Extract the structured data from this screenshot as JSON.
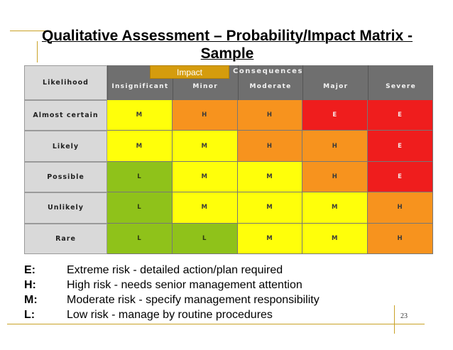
{
  "slide": {
    "title_line1": "Qualitative Assessment – Probability/Impact Matrix -",
    "title_line2": "Sample",
    "page_number": "23"
  },
  "matrix": {
    "impact_label": "Impact",
    "consequences_label": "Consequences",
    "likelihood_label": "Likelihood",
    "columns": [
      "Insignificant",
      "Minor",
      "Moderate",
      "Major",
      "Severe"
    ],
    "rows": [
      {
        "label": "Almost certain",
        "ratings": [
          "M",
          "H",
          "H",
          "E",
          "E"
        ]
      },
      {
        "label": "Likely",
        "ratings": [
          "M",
          "M",
          "H",
          "H",
          "E"
        ]
      },
      {
        "label": "Possible",
        "ratings": [
          "L",
          "M",
          "M",
          "H",
          "E"
        ]
      },
      {
        "label": "Unlikely",
        "ratings": [
          "L",
          "M",
          "M",
          "M",
          "H"
        ]
      },
      {
        "label": "Rare",
        "ratings": [
          "L",
          "L",
          "M",
          "M",
          "H"
        ]
      }
    ],
    "colors": {
      "E": "#ef1d1d",
      "H": "#f7931e",
      "M": "#ffff0a",
      "L": "#8fc21a"
    }
  },
  "legend": [
    {
      "code": "E:",
      "text": "Extreme risk - detailed action/plan required"
    },
    {
      "code": "H:",
      "text": "High risk - needs senior management attention"
    },
    {
      "code": "M:",
      "text": "Moderate risk - specify management responsibility"
    },
    {
      "code": "L:",
      "text": "Low risk - manage by routine procedures"
    }
  ]
}
